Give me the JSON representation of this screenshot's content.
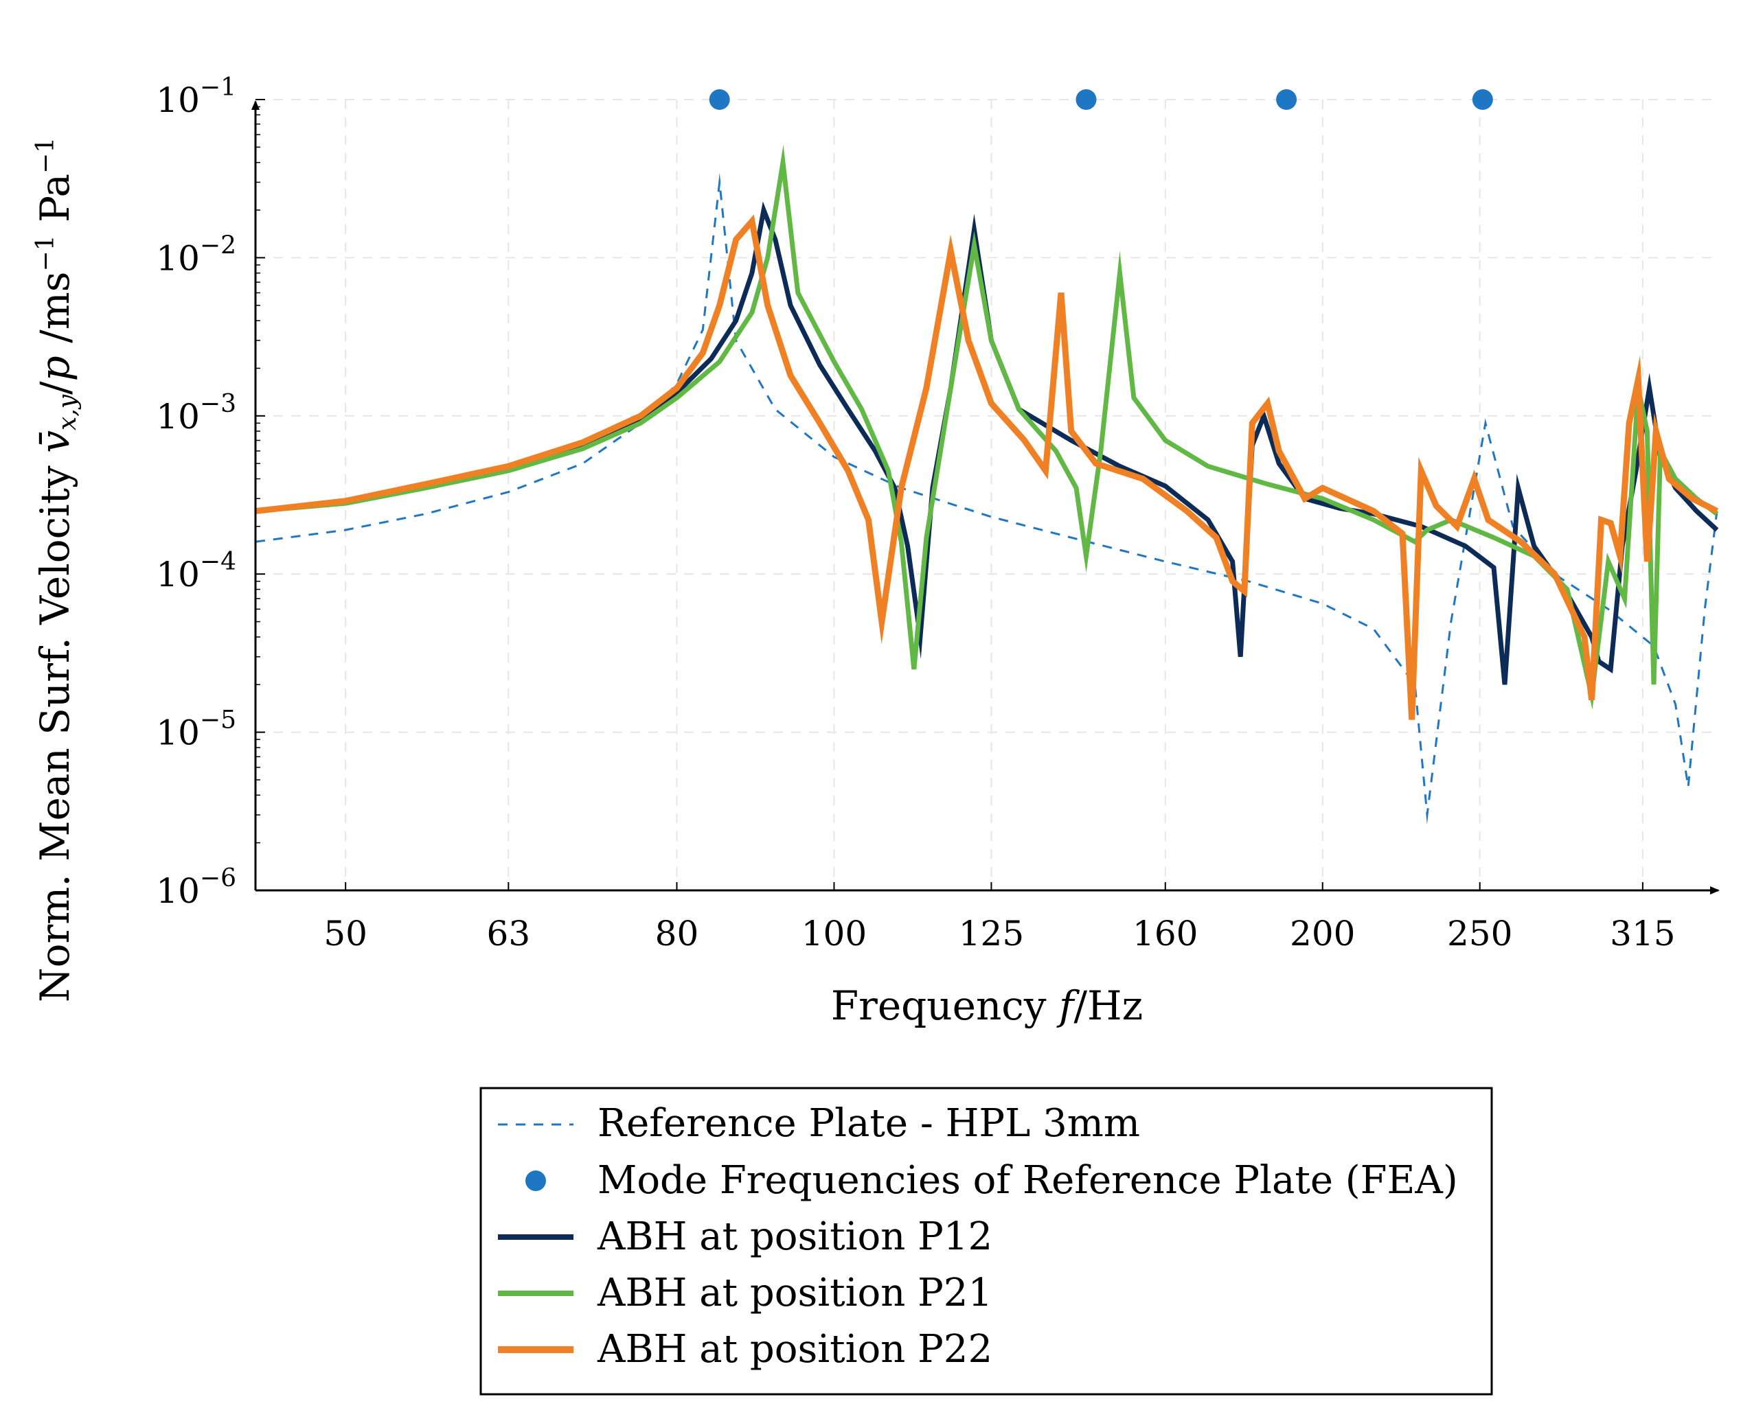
{
  "chart_data": {
    "type": "line",
    "xlabel": "Frequency f/Hz",
    "ylabel": "Norm. Mean Surf. Velocity v̄x,y/p /ms⁻¹ Pa⁻¹",
    "x_scale": "log",
    "y_scale": "log",
    "xlim": [
      44,
      350
    ],
    "ylim": [
      1e-06,
      0.1
    ],
    "x_ticks": [
      {
        "value": 50,
        "label": "50"
      },
      {
        "value": 63,
        "label": "63"
      },
      {
        "value": 80,
        "label": "80"
      },
      {
        "value": 100,
        "label": "100"
      },
      {
        "value": 125,
        "label": "125"
      },
      {
        "value": 160,
        "label": "160"
      },
      {
        "value": 200,
        "label": "200"
      },
      {
        "value": 250,
        "label": "250"
      },
      {
        "value": 315,
        "label": "315"
      }
    ],
    "y_ticks": [
      {
        "value": 1e-06,
        "base": "10",
        "exp": "−6"
      },
      {
        "value": 1e-05,
        "base": "10",
        "exp": "−5"
      },
      {
        "value": 0.0001,
        "base": "10",
        "exp": "−4"
      },
      {
        "value": 0.001,
        "base": "10",
        "exp": "−3"
      },
      {
        "value": 0.01,
        "base": "10",
        "exp": "−2"
      },
      {
        "value": 0.1,
        "base": "10",
        "exp": "−1"
      }
    ],
    "series": [
      {
        "name": "Reference Plate - HPL 3mm",
        "style": "dashed",
        "color": "#1f77c4",
        "points": [
          [
            44,
            0.00016
          ],
          [
            50,
            0.00019
          ],
          [
            56,
            0.00024
          ],
          [
            63,
            0.00033
          ],
          [
            70,
            0.0005
          ],
          [
            76,
            0.0009
          ],
          [
            80,
            0.0016
          ],
          [
            83,
            0.0035
          ],
          [
            85,
            0.03
          ],
          [
            87,
            0.003
          ],
          [
            92,
            0.0011
          ],
          [
            100,
            0.00055
          ],
          [
            110,
            0.00035
          ],
          [
            125,
            0.00023
          ],
          [
            140,
            0.00017
          ],
          [
            160,
            0.00012
          ],
          [
            180,
            9e-05
          ],
          [
            200,
            6.5e-05
          ],
          [
            215,
            4.5e-05
          ],
          [
            228,
            2e-05
          ],
          [
            232,
            3e-06
          ],
          [
            240,
            5e-05
          ],
          [
            252,
            0.0009
          ],
          [
            262,
            0.0002
          ],
          [
            280,
            9.5e-05
          ],
          [
            300,
            6e-05
          ],
          [
            320,
            3.5e-05
          ],
          [
            330,
            1.5e-05
          ],
          [
            336,
            4.5e-06
          ],
          [
            344,
            6e-05
          ],
          [
            350,
            0.00025
          ]
        ]
      },
      {
        "name": "ABH at position P12",
        "style": "solid",
        "color": "#0c2b57",
        "points": [
          [
            44,
            0.00025
          ],
          [
            50,
            0.00029
          ],
          [
            56,
            0.00036
          ],
          [
            63,
            0.00047
          ],
          [
            70,
            0.00064
          ],
          [
            76,
            0.00095
          ],
          [
            80,
            0.0014
          ],
          [
            84,
            0.0023
          ],
          [
            87,
            0.004
          ],
          [
            89,
            0.008
          ],
          [
            90.5,
            0.02
          ],
          [
            92,
            0.013
          ],
          [
            94,
            0.005
          ],
          [
            98,
            0.0021
          ],
          [
            102,
            0.0011
          ],
          [
            106,
            0.0006
          ],
          [
            109,
            0.00035
          ],
          [
            111,
            0.00015
          ],
          [
            113,
            4e-05
          ],
          [
            115,
            0.00035
          ],
          [
            118,
            0.0015
          ],
          [
            122,
            0.015
          ],
          [
            125,
            0.003
          ],
          [
            130,
            0.0011
          ],
          [
            140,
            0.0007
          ],
          [
            150,
            0.00048
          ],
          [
            160,
            0.00036
          ],
          [
            170,
            0.00022
          ],
          [
            176,
            0.00012
          ],
          [
            178,
            3e-05
          ],
          [
            181,
            0.00065
          ],
          [
            184,
            0.001
          ],
          [
            188,
            0.0005
          ],
          [
            195,
            0.0003
          ],
          [
            205,
            0.00026
          ],
          [
            215,
            0.00024
          ],
          [
            230,
            0.0002
          ],
          [
            245,
            0.00015
          ],
          [
            255,
            0.00011
          ],
          [
            259,
            2e-05
          ],
          [
            264,
            0.00035
          ],
          [
            270,
            0.00015
          ],
          [
            282,
            8e-05
          ],
          [
            293,
            4e-05
          ],
          [
            296,
            2.8e-05
          ],
          [
            301,
            2.5e-05
          ],
          [
            306,
            0.00015
          ],
          [
            312,
            0.00045
          ],
          [
            318,
            0.0015
          ],
          [
            323,
            0.00055
          ],
          [
            330,
            0.00035
          ],
          [
            340,
            0.00025
          ],
          [
            350,
            0.00019
          ]
        ]
      },
      {
        "name": "ABH at position P21",
        "style": "solid",
        "color": "#61b844",
        "points": [
          [
            44,
            0.00025
          ],
          [
            50,
            0.00028
          ],
          [
            56,
            0.00035
          ],
          [
            63,
            0.00045
          ],
          [
            70,
            0.00062
          ],
          [
            76,
            0.0009
          ],
          [
            80,
            0.0013
          ],
          [
            85,
            0.0022
          ],
          [
            89,
            0.0045
          ],
          [
            91,
            0.01
          ],
          [
            93,
            0.04
          ],
          [
            95,
            0.006
          ],
          [
            100,
            0.0022
          ],
          [
            104,
            0.0011
          ],
          [
            108,
            0.00045
          ],
          [
            110,
            0.00016
          ],
          [
            112,
            2.5e-05
          ],
          [
            114,
            0.00017
          ],
          [
            118,
            0.0015
          ],
          [
            122,
            0.012
          ],
          [
            125,
            0.003
          ],
          [
            130,
            0.0011
          ],
          [
            137,
            0.0006
          ],
          [
            141,
            0.00035
          ],
          [
            143,
            0.00013
          ],
          [
            146,
            0.0006
          ],
          [
            150,
            0.008
          ],
          [
            153,
            0.0013
          ],
          [
            160,
            0.0007
          ],
          [
            170,
            0.00048
          ],
          [
            185,
            0.00037
          ],
          [
            200,
            0.0003
          ],
          [
            215,
            0.00022
          ],
          [
            228,
            0.00016
          ],
          [
            232,
            0.00019
          ],
          [
            240,
            0.00022
          ],
          [
            255,
            0.00017
          ],
          [
            270,
            0.00013
          ],
          [
            283,
            8e-05
          ],
          [
            293,
            1.7e-05
          ],
          [
            300,
            0.00012
          ],
          [
            307,
            7e-05
          ],
          [
            313,
            0.0015
          ],
          [
            317,
            0.0008
          ],
          [
            320,
            2e-05
          ],
          [
            323,
            0.0006
          ],
          [
            330,
            0.0004
          ],
          [
            340,
            0.0003
          ],
          [
            350,
            0.00024
          ]
        ]
      },
      {
        "name": "ABH at position P22",
        "style": "solid",
        "color": "#ef8124",
        "points": [
          [
            44,
            0.00025
          ],
          [
            50,
            0.00029
          ],
          [
            56,
            0.00037
          ],
          [
            63,
            0.00048
          ],
          [
            70,
            0.00068
          ],
          [
            76,
            0.001
          ],
          [
            80,
            0.0015
          ],
          [
            83,
            0.0025
          ],
          [
            85,
            0.005
          ],
          [
            87,
            0.013
          ],
          [
            89,
            0.017
          ],
          [
            91,
            0.005
          ],
          [
            94,
            0.0018
          ],
          [
            98,
            0.0009
          ],
          [
            102,
            0.00045
          ],
          [
            105,
            0.00022
          ],
          [
            107,
            5e-05
          ],
          [
            110,
            0.00035
          ],
          [
            114,
            0.0015
          ],
          [
            118,
            0.011
          ],
          [
            121,
            0.003
          ],
          [
            125,
            0.0012
          ],
          [
            131,
            0.0007
          ],
          [
            135,
            0.00045
          ],
          [
            138,
            0.006
          ],
          [
            140,
            0.0008
          ],
          [
            145,
            0.0005
          ],
          [
            155,
            0.0004
          ],
          [
            165,
            0.00025
          ],
          [
            172,
            0.00017
          ],
          [
            176,
            9e-05
          ],
          [
            179,
            7.8e-05
          ],
          [
            181,
            0.0009
          ],
          [
            185,
            0.0012
          ],
          [
            188,
            0.0006
          ],
          [
            195,
            0.0003
          ],
          [
            200,
            0.00035
          ],
          [
            215,
            0.00025
          ],
          [
            224,
            0.00018
          ],
          [
            227,
            1.2e-05
          ],
          [
            230,
            0.00045
          ],
          [
            235,
            0.00027
          ],
          [
            242,
            0.0002
          ],
          [
            248,
            0.0004
          ],
          [
            253,
            0.00022
          ],
          [
            265,
            0.00016
          ],
          [
            278,
            0.0001
          ],
          [
            290,
            4e-05
          ],
          [
            293,
            1.6e-05
          ],
          [
            297,
            0.00022
          ],
          [
            301,
            0.00021
          ],
          [
            305,
            0.00013
          ],
          [
            309,
            0.0009
          ],
          [
            313,
            0.0017
          ],
          [
            317,
            0.00012
          ],
          [
            321,
            0.0008
          ],
          [
            327,
            0.0004
          ],
          [
            338,
            0.0003
          ],
          [
            350,
            0.00025
          ]
        ]
      }
    ],
    "mode_frequencies": {
      "name": "Mode Frequencies of Reference Plate (FEA)",
      "color": "#1f77c4",
      "y": 0.1,
      "x": [
        85,
        143,
        190,
        251
      ]
    }
  }
}
